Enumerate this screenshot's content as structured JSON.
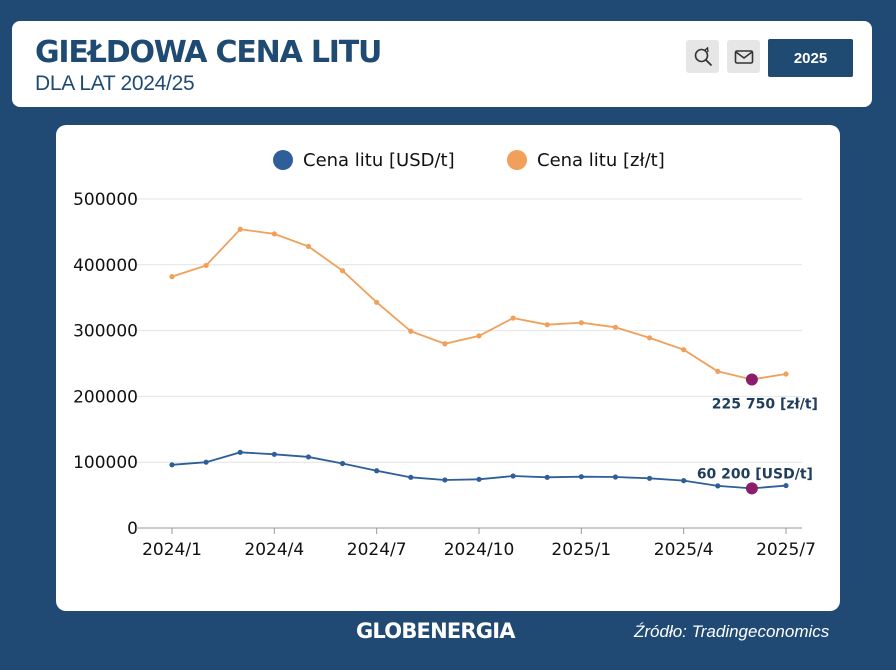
{
  "header": {
    "title": "GIEŁDOWA CENA LITU",
    "subtitle": "DLA LAT 2024/25",
    "year_button": "2025",
    "icons": [
      "zoom-reset-icon",
      "mail-icon"
    ]
  },
  "colors": {
    "background": "#204a73",
    "usd_series": "#2f5f98",
    "pln_series": "#f0a05a",
    "highlight": "#8c1d6a",
    "label_text": "#1f3d5c"
  },
  "chart_data": {
    "type": "line",
    "x": [
      "2024/1",
      "2024/2",
      "2024/3",
      "2024/4",
      "2024/5",
      "2024/6",
      "2024/7",
      "2024/8",
      "2024/9",
      "2024/10",
      "2024/11",
      "2024/12",
      "2025/1",
      "2025/2",
      "2025/3",
      "2025/4",
      "2025/5",
      "2025/6",
      "2025/7"
    ],
    "x_tick_labels": [
      "2024/1",
      "2024/4",
      "2024/7",
      "2024/10",
      "2025/1",
      "2025/4",
      "2025/7"
    ],
    "y_tick_labels": [
      "0",
      "100000",
      "200000",
      "300000",
      "400000",
      "500000"
    ],
    "ylim": [
      0,
      500000
    ],
    "grid": true,
    "legend_position": "top-center",
    "series": [
      {
        "name": "Cena litu [USD/t]",
        "color": "#2f5f98",
        "values": [
          96000,
          100000,
          115000,
          112000,
          108000,
          98000,
          87000,
          77000,
          73000,
          74000,
          79000,
          77000,
          78000,
          77500,
          75500,
          72000,
          64000,
          60200,
          64500
        ]
      },
      {
        "name": "Cena litu [zł/t]",
        "color": "#f0a05a",
        "values": [
          382000,
          399000,
          454000,
          447000,
          428000,
          391000,
          343000,
          299000,
          280000,
          292000,
          319000,
          309000,
          312000,
          305000,
          289000,
          271000,
          238000,
          225750,
          234000
        ]
      }
    ],
    "annotations": [
      {
        "series": 1,
        "index": 17,
        "text": "225 750 [zł/t]"
      },
      {
        "series": 0,
        "index": 17,
        "text": "60 200 [USD/t]"
      }
    ]
  },
  "footer": {
    "logo": "GLOBENERGIA",
    "source": "Źródło: Tradingeconomics"
  }
}
